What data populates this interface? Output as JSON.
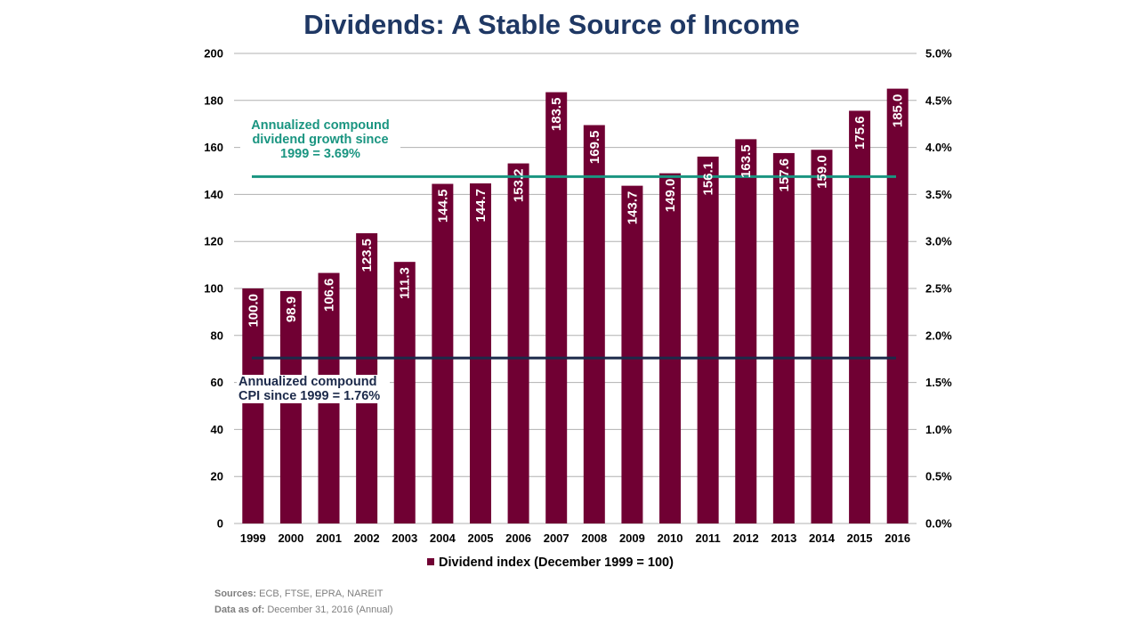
{
  "title": "Dividends: A Stable Source of Income",
  "colors": {
    "bar": "#700033",
    "grid": "#b0b0b0",
    "dividend_line": "#1a9581",
    "cpi_line": "#1c2a4a",
    "title": "#1f3864"
  },
  "chart_data": {
    "type": "bar",
    "categories": [
      "1999",
      "2000",
      "2001",
      "2002",
      "2003",
      "2004",
      "2005",
      "2006",
      "2007",
      "2008",
      "2009",
      "2010",
      "2011",
      "2012",
      "2013",
      "2014",
      "2015",
      "2016"
    ],
    "series": [
      {
        "name": "Dividend index (December 1999 = 100)",
        "values": [
          100.0,
          98.9,
          106.6,
          123.5,
          111.3,
          144.5,
          144.7,
          153.2,
          183.5,
          169.5,
          143.7,
          149.0,
          156.1,
          163.5,
          157.6,
          159.0,
          175.6,
          185.0
        ],
        "labels": [
          "100.0",
          "98.9",
          "106.6",
          "123.5",
          "111.3",
          "144.5",
          "144.7",
          "153.2",
          "183.5",
          "169.5",
          "143.7",
          "149.0",
          "156.1",
          "163.5",
          "157.6",
          "159.0",
          "175.6",
          "185.0"
        ]
      }
    ],
    "ylim": [
      0,
      200
    ],
    "y_ticks": [
      "0",
      "20",
      "40",
      "60",
      "80",
      "100",
      "120",
      "140",
      "160",
      "180",
      "200"
    ],
    "y2lim": [
      0,
      5.0
    ],
    "y2_ticks": [
      "0.0%",
      "0.5%",
      "1.0%",
      "1.5%",
      "2.0%",
      "2.5%",
      "3.0%",
      "3.5%",
      "4.0%",
      "4.5%",
      "5.0%"
    ],
    "reference_lines": [
      {
        "axis": "y2",
        "value": 3.69,
        "label": "Annualized compound dividend growth since 1999 = 3.69%"
      },
      {
        "axis": "y2",
        "value": 1.76,
        "label": "Annualized compound CPI since 1999 = 1.76%"
      }
    ],
    "grid": true,
    "legend": "bottom"
  },
  "annotations": {
    "dividend_growth": "Annualized compound dividend growth since 1999 = 3.69%",
    "cpi": "Annualized compound CPI since 1999 = 1.76%"
  },
  "legend": {
    "label": "Dividend index (December 1999 = 100)"
  },
  "footer": {
    "sources_label": "Sources:",
    "sources_value": "ECB, FTSE, EPRA, NAREIT",
    "asof_label": "Data as of:",
    "asof_value": "December 31, 2016 (Annual)"
  }
}
